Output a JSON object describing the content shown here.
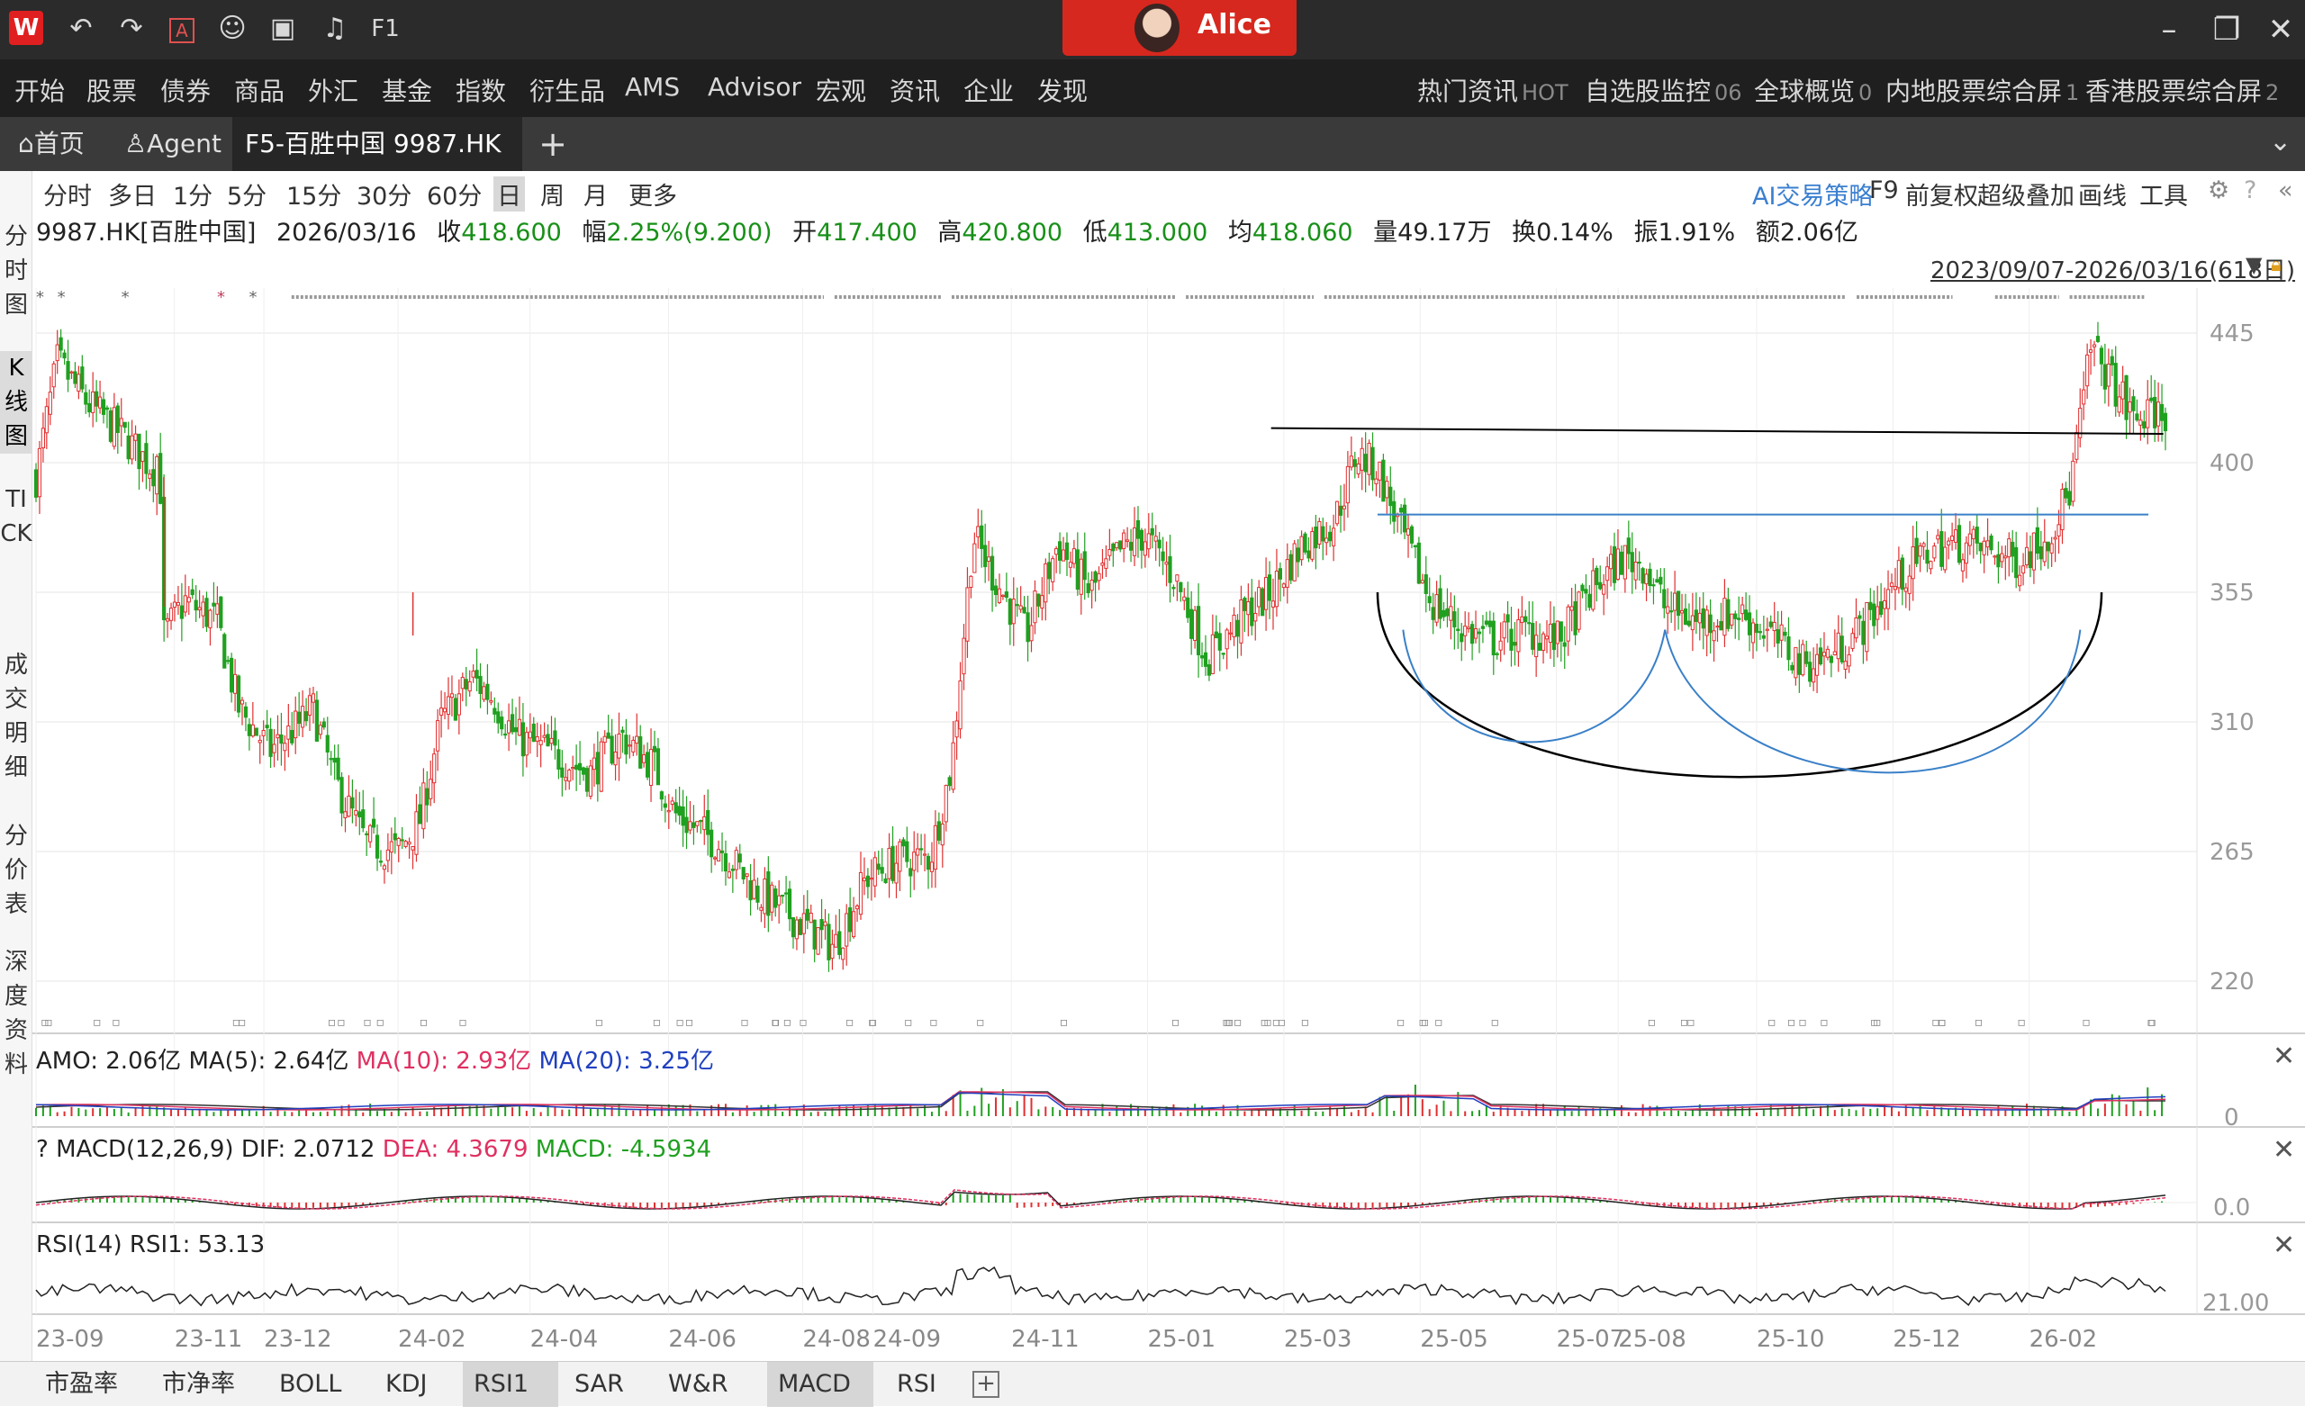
{
  "titlebar": {
    "logo": "W",
    "icons": [
      "undo-icon",
      "redo-icon",
      "a-box-icon",
      "chat-icon",
      "screen-icon",
      "bell-icon",
      "f1-icon"
    ],
    "user_name": "Alice"
  },
  "menu": {
    "left": [
      "开始",
      "股票",
      "债券",
      "商品",
      "外汇",
      "基金",
      "指数",
      "衍生品",
      "AMS",
      "Advisor",
      "宏观",
      "资讯",
      "企业",
      "发现"
    ],
    "right": [
      {
        "label": "热门资讯",
        "sub": "HOT"
      },
      {
        "label": "自选股监控",
        "sub": "06"
      },
      {
        "label": "全球概览",
        "sub": "0"
      },
      {
        "label": "内地股票综合屏",
        "sub": "1"
      },
      {
        "label": "香港股票综合屏",
        "sub": "2"
      }
    ]
  },
  "tabs": {
    "home": "⌂首页",
    "agent": "♙Agent",
    "active": "F5-百胜中国 9987.HK",
    "add": "+"
  },
  "leftnav": [
    "分时图",
    "K线图",
    "TICK",
    "成交明细",
    "分价表",
    "深度资料"
  ],
  "periods": [
    "分时",
    "多日",
    "1分",
    "5分",
    "15分",
    "30分",
    "60分",
    "日",
    "周",
    "月",
    "更多"
  ],
  "right_tools": [
    "AI交易策略",
    "F9",
    "前复权",
    "超级叠加",
    "画线",
    "工具"
  ],
  "stock": {
    "code": "9987.HK[百胜中国]",
    "date": "2026/03/16",
    "close_label": "收",
    "close": "418.600",
    "change_label": "幅",
    "change": "2.25%(9.200)",
    "open_label": "开",
    "open": "417.400",
    "high_label": "高",
    "high": "420.800",
    "low_label": "低",
    "low": "413.000",
    "avg_label": "均",
    "avg": "418.060",
    "vol_label": "量",
    "vol": "49.17万",
    "turnover_label": "换",
    "turnover": "0.14%",
    "amp_label": "振",
    "amp": "1.91%",
    "amount_label": "额",
    "amount": "2.06亿"
  },
  "date_range": "2023/09/07-2026/03/16(618日)",
  "chart_data": {
    "type": "candlestick",
    "symbol": "9987.HK",
    "y_ticks": [
      445,
      400,
      355,
      310,
      265,
      220
    ],
    "x_ticks": [
      "23-09",
      "23-11",
      "23-12",
      "24-02",
      "24-04",
      "24-06",
      "24-08",
      "24-09",
      "24-11",
      "25-01",
      "25-03",
      "25-05",
      "25-07",
      "25-08",
      "25-10",
      "25-12",
      "26-02"
    ],
    "price_path": [
      [
        0,
        395
      ],
      [
        0.01,
        435
      ],
      [
        0.025,
        420
      ],
      [
        0.04,
        410
      ],
      [
        0.055,
        398
      ],
      [
        0.058,
        405
      ],
      [
        0.06,
        340
      ],
      [
        0.07,
        352
      ],
      [
        0.085,
        345
      ],
      [
        0.095,
        315
      ],
      [
        0.11,
        300
      ],
      [
        0.125,
        310
      ],
      [
        0.13,
        315
      ],
      [
        0.14,
        290
      ],
      [
        0.155,
        268
      ],
      [
        0.17,
        265
      ],
      [
        0.18,
        275
      ],
      [
        0.19,
        310
      ],
      [
        0.205,
        325
      ],
      [
        0.215,
        318
      ],
      [
        0.225,
        305
      ],
      [
        0.24,
        300
      ],
      [
        0.26,
        292
      ],
      [
        0.275,
        305
      ],
      [
        0.29,
        295
      ],
      [
        0.3,
        278
      ],
      [
        0.32,
        268
      ],
      [
        0.34,
        250
      ],
      [
        0.36,
        240
      ],
      [
        0.375,
        232
      ],
      [
        0.39,
        256
      ],
      [
        0.405,
        262
      ],
      [
        0.42,
        263
      ],
      [
        0.43,
        295
      ],
      [
        0.44,
        375
      ],
      [
        0.45,
        360
      ],
      [
        0.465,
        340
      ],
      [
        0.48,
        372
      ],
      [
        0.495,
        355
      ],
      [
        0.51,
        370
      ],
      [
        0.52,
        375
      ],
      [
        0.535,
        360
      ],
      [
        0.55,
        332
      ],
      [
        0.565,
        345
      ],
      [
        0.58,
        355
      ],
      [
        0.595,
        372
      ],
      [
        0.61,
        380
      ],
      [
        0.62,
        403
      ],
      [
        0.63,
        398
      ],
      [
        0.64,
        378
      ],
      [
        0.655,
        352
      ],
      [
        0.67,
        342
      ],
      [
        0.685,
        338
      ],
      [
        0.7,
        342
      ],
      [
        0.715,
        338
      ],
      [
        0.73,
        355
      ],
      [
        0.745,
        367
      ],
      [
        0.755,
        365
      ],
      [
        0.765,
        350
      ],
      [
        0.78,
        345
      ],
      [
        0.8,
        348
      ],
      [
        0.815,
        340
      ],
      [
        0.83,
        330
      ],
      [
        0.845,
        334
      ],
      [
        0.86,
        345
      ],
      [
        0.875,
        360
      ],
      [
        0.89,
        370
      ],
      [
        0.905,
        372
      ],
      [
        0.915,
        370
      ],
      [
        0.93,
        366
      ],
      [
        0.945,
        375
      ],
      [
        0.955,
        390
      ],
      [
        0.965,
        440
      ],
      [
        0.975,
        428
      ],
      [
        0.985,
        415
      ],
      [
        1.0,
        418
      ]
    ],
    "annotations": [
      {
        "type": "horizontal-line",
        "price": 412,
        "color": "#000000"
      },
      {
        "type": "horizontal-line",
        "price": 383,
        "color": "#3a80c8"
      },
      {
        "type": "cup-arc",
        "color": "#000000"
      },
      {
        "type": "small-arc",
        "color": "#3a80c8"
      },
      {
        "type": "medium-arc",
        "color": "#3a80c8"
      }
    ],
    "colors": {
      "up": "#e03030",
      "down": "#20a020",
      "grid": "#e6e6e6"
    }
  },
  "indicators": {
    "amo": {
      "name": "AMO:",
      "value": "2.06亿",
      "ma5": "MA(5): 2.64亿",
      "ma10": "MA(10): 2.93亿",
      "ma20": "MA(20): 3.25亿",
      "axis": "0"
    },
    "macd": {
      "q": "?",
      "name": "MACD(12,26,9)",
      "dif": "DIF: 2.0712",
      "dea": "DEA: 4.3679",
      "macd": "MACD: -4.5934",
      "axis": "0.0"
    },
    "rsi": {
      "name": "RSI(14)",
      "rsi1": "RSI1: 53.13",
      "axis": "21.00"
    }
  },
  "indicator_tabs": [
    "市盈率",
    "市净率",
    "BOLL",
    "KDJ",
    "RSI1",
    "SAR",
    "W&R",
    "MACD",
    "RSI"
  ],
  "active_indicator_tabs": [
    "RSI1",
    "MACD"
  ]
}
